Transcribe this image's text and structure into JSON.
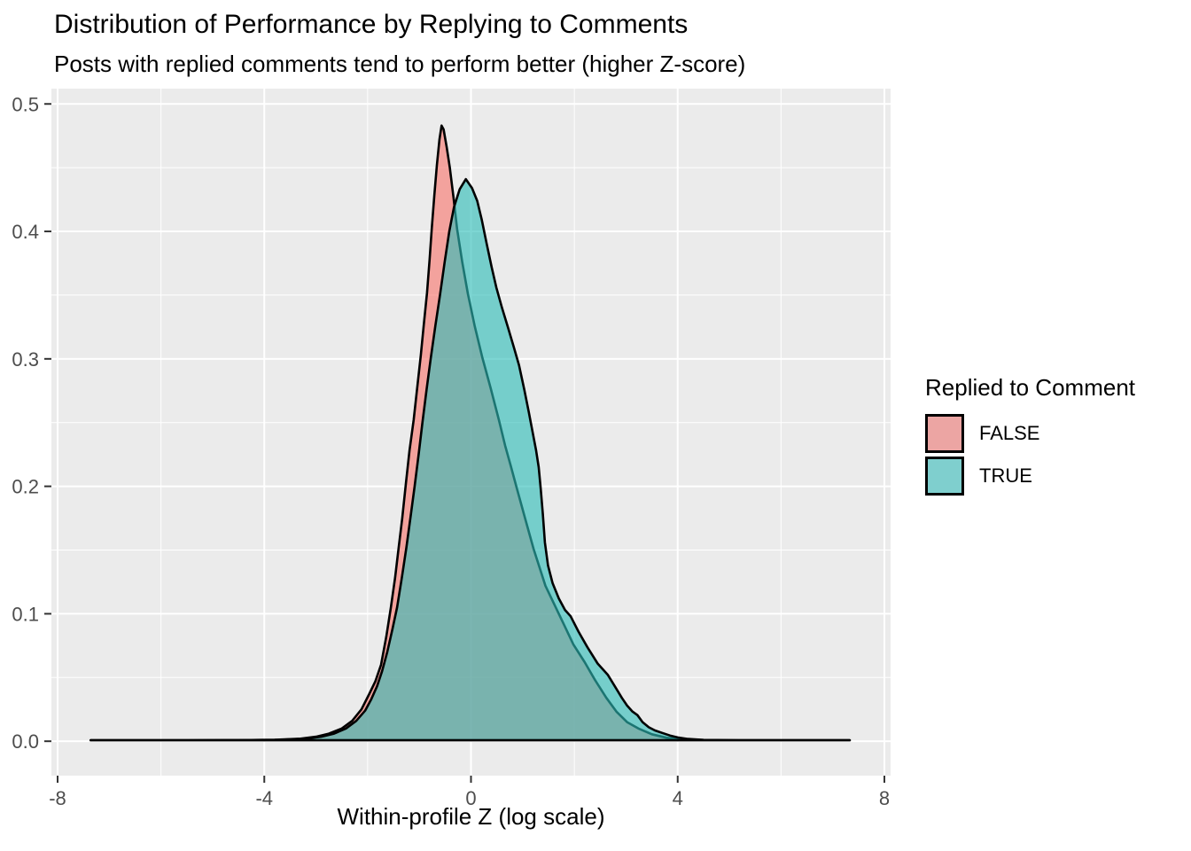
{
  "title": "Distribution of Performance by Replying to Comments",
  "subtitle": "Posts with replied comments tend to perform better (higher Z-score)",
  "x_axis_title": "Within-profile Z (log scale)",
  "legend": {
    "title": "Replied to Comment",
    "items": [
      {
        "label": "FALSE",
        "swatch": "#ECA5A3"
      },
      {
        "label": "TRUE",
        "swatch": "#7FCFCE"
      }
    ]
  },
  "colors": {
    "panel_bg": "#EBEBEB",
    "grid_major": "#FFFFFF",
    "grid_minor": "#FFFFFF",
    "tick_text": "#4D4D4D",
    "tick_mark": "#333333",
    "curve_stroke": "#000000",
    "false_fill": "#F8766D",
    "true_fill": "#2DBDB8",
    "fill_alpha": 0.62
  },
  "chart_data": {
    "type": "area",
    "subtype": "overlapping-density",
    "title": "Distribution of Performance by Replying to Comments",
    "subtitle": "Posts with replied comments tend to perform better (higher Z-score)",
    "xlabel": "Within-profile Z (log scale)",
    "ylabel": "",
    "legend_title": "Replied to Comment",
    "legend_position": "right",
    "grid": true,
    "xlim": [
      -8.12,
      8.12
    ],
    "ylim": [
      -0.027,
      0.512
    ],
    "x_ticks": [
      -8,
      -4,
      0,
      4,
      8
    ],
    "x_tick_labels": [
      "-8",
      "-4",
      "0",
      "4",
      "8"
    ],
    "y_ticks": [
      0,
      0.1,
      0.2,
      0.3,
      0.4,
      0.5
    ],
    "y_tick_labels": [
      "0.0",
      "0.1",
      "0.2",
      "0.3",
      "0.4",
      "0.5"
    ],
    "x_minor": [
      -6,
      -2,
      2,
      6
    ],
    "y_minor": [
      0.05,
      0.15,
      0.25,
      0.35,
      0.45
    ],
    "series": [
      {
        "name": "FALSE",
        "color": "#F8766D",
        "peak": {
          "x": -0.57,
          "density": 0.483
        },
        "points": [
          [
            -7.36,
            0.0008
          ],
          [
            -6.5,
            0.0008
          ],
          [
            -5.5,
            0.0008
          ],
          [
            -4.5,
            0.0009
          ],
          [
            -3.8,
            0.0012
          ],
          [
            -3.3,
            0.002
          ],
          [
            -3.0,
            0.0035
          ],
          [
            -2.75,
            0.006
          ],
          [
            -2.5,
            0.01
          ],
          [
            -2.3,
            0.016
          ],
          [
            -2.12,
            0.025
          ],
          [
            -1.97,
            0.037
          ],
          [
            -1.85,
            0.047
          ],
          [
            -1.74,
            0.06
          ],
          [
            -1.64,
            0.082
          ],
          [
            -1.55,
            0.105
          ],
          [
            -1.47,
            0.128
          ],
          [
            -1.4,
            0.152
          ],
          [
            -1.33,
            0.175
          ],
          [
            -1.26,
            0.202
          ],
          [
            -1.19,
            0.228
          ],
          [
            -1.11,
            0.252
          ],
          [
            -1.04,
            0.278
          ],
          [
            -0.97,
            0.303
          ],
          [
            -0.91,
            0.328
          ],
          [
            -0.85,
            0.352
          ],
          [
            -0.8,
            0.378
          ],
          [
            -0.76,
            0.402
          ],
          [
            -0.71,
            0.428
          ],
          [
            -0.66,
            0.452
          ],
          [
            -0.61,
            0.472
          ],
          [
            -0.57,
            0.483
          ],
          [
            -0.53,
            0.48
          ],
          [
            -0.47,
            0.466
          ],
          [
            -0.41,
            0.45
          ],
          [
            -0.34,
            0.427
          ],
          [
            -0.27,
            0.402
          ],
          [
            -0.17,
            0.376
          ],
          [
            -0.06,
            0.351
          ],
          [
            0.07,
            0.326
          ],
          [
            0.22,
            0.301
          ],
          [
            0.38,
            0.277
          ],
          [
            0.54,
            0.252
          ],
          [
            0.66,
            0.232
          ],
          [
            0.77,
            0.216
          ],
          [
            0.89,
            0.198
          ],
          [
            1.04,
            0.176
          ],
          [
            1.21,
            0.151
          ],
          [
            1.44,
            0.122
          ],
          [
            1.7,
            0.1
          ],
          [
            1.98,
            0.076
          ],
          [
            2.2,
            0.062
          ],
          [
            2.4,
            0.048
          ],
          [
            2.62,
            0.034
          ],
          [
            2.82,
            0.023
          ],
          [
            3.02,
            0.015
          ],
          [
            3.24,
            0.01
          ],
          [
            3.5,
            0.0055
          ],
          [
            3.78,
            0.0028
          ],
          [
            4.1,
            0.0014
          ],
          [
            4.6,
            0.0009
          ],
          [
            5.5,
            0.0008
          ],
          [
            6.5,
            0.0008
          ],
          [
            7.33,
            0.0008
          ]
        ]
      },
      {
        "name": "TRUE",
        "color": "#2DBDB8",
        "peak": {
          "x": -0.1,
          "density": 0.441
        },
        "points": [
          [
            -7.36,
            0.0008
          ],
          [
            -6.5,
            0.0008
          ],
          [
            -5.5,
            0.0008
          ],
          [
            -4.5,
            0.0009
          ],
          [
            -3.7,
            0.0012
          ],
          [
            -3.2,
            0.002
          ],
          [
            -2.9,
            0.0035
          ],
          [
            -2.65,
            0.006
          ],
          [
            -2.42,
            0.01
          ],
          [
            -2.22,
            0.016
          ],
          [
            -2.05,
            0.024
          ],
          [
            -1.93,
            0.033
          ],
          [
            -1.82,
            0.043
          ],
          [
            -1.72,
            0.055
          ],
          [
            -1.62,
            0.07
          ],
          [
            -1.52,
            0.088
          ],
          [
            -1.43,
            0.105
          ],
          [
            -1.34,
            0.128
          ],
          [
            -1.25,
            0.152
          ],
          [
            -1.17,
            0.176
          ],
          [
            -1.09,
            0.2
          ],
          [
            -1.01,
            0.226
          ],
          [
            -0.94,
            0.25
          ],
          [
            -0.86,
            0.276
          ],
          [
            -0.78,
            0.3
          ],
          [
            -0.69,
            0.326
          ],
          [
            -0.6,
            0.35
          ],
          [
            -0.51,
            0.376
          ],
          [
            -0.42,
            0.4
          ],
          [
            -0.33,
            0.419
          ],
          [
            -0.22,
            0.433
          ],
          [
            -0.1,
            0.441
          ],
          [
            0.02,
            0.434
          ],
          [
            0.12,
            0.424
          ],
          [
            0.21,
            0.409
          ],
          [
            0.3,
            0.391
          ],
          [
            0.4,
            0.372
          ],
          [
            0.49,
            0.356
          ],
          [
            0.6,
            0.34
          ],
          [
            0.72,
            0.324
          ],
          [
            0.83,
            0.309
          ],
          [
            0.93,
            0.295
          ],
          [
            1.03,
            0.276
          ],
          [
            1.12,
            0.258
          ],
          [
            1.19,
            0.243
          ],
          [
            1.26,
            0.228
          ],
          [
            1.31,
            0.215
          ],
          [
            1.35,
            0.198
          ],
          [
            1.39,
            0.178
          ],
          [
            1.43,
            0.156
          ],
          [
            1.49,
            0.138
          ],
          [
            1.58,
            0.124
          ],
          [
            1.7,
            0.112
          ],
          [
            1.82,
            0.103
          ],
          [
            1.93,
            0.098
          ],
          [
            2.08,
            0.086
          ],
          [
            2.25,
            0.074
          ],
          [
            2.45,
            0.061
          ],
          [
            2.65,
            0.052
          ],
          [
            2.8,
            0.042
          ],
          [
            2.92,
            0.034
          ],
          [
            3.02,
            0.028
          ],
          [
            3.12,
            0.0235
          ],
          [
            3.22,
            0.0205
          ],
          [
            3.32,
            0.015
          ],
          [
            3.44,
            0.011
          ],
          [
            3.56,
            0.0085
          ],
          [
            3.7,
            0.0065
          ],
          [
            3.85,
            0.0045
          ],
          [
            4.0,
            0.003
          ],
          [
            4.2,
            0.0018
          ],
          [
            4.5,
            0.001
          ],
          [
            5.2,
            0.0008
          ],
          [
            6.3,
            0.0008
          ],
          [
            7.33,
            0.0008
          ]
        ]
      }
    ]
  }
}
